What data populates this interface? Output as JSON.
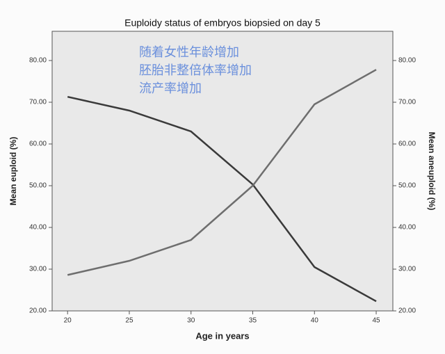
{
  "chart_data": {
    "type": "line",
    "title": "Euploidy status of embryos biopsied on day 5",
    "annotations": [
      "随着女性年龄增加",
      "胚胎非整倍体率增加",
      "流产率增加"
    ],
    "xlabel": "Age in years",
    "ylabel": "Mean euploid (%)",
    "y2label": "Mean aneuploid (%)",
    "x": [
      20,
      25,
      30,
      35,
      40,
      45
    ],
    "series": [
      {
        "color": "#3a3a3a",
        "values": [
          71.3,
          68,
          63,
          50.3,
          30.5,
          22.3
        ]
      },
      {
        "color": "#6e6e6e",
        "axis": "y2",
        "values": [
          28.6,
          32,
          37,
          50,
          69.5,
          77.8
        ]
      }
    ],
    "xlim": [
      18.75,
      46.35
    ],
    "xticks": [
      20,
      25,
      30,
      35,
      40,
      45
    ],
    "ylim": [
      20,
      87
    ],
    "yticks": [
      {
        "value": 20,
        "label": "20.00"
      },
      {
        "value": 30,
        "label": "30.00"
      },
      {
        "value": 40,
        "label": "40.00"
      },
      {
        "value": 50,
        "label": "50.00"
      },
      {
        "value": 60,
        "label": "60.00"
      },
      {
        "value": 70,
        "label": "70.00"
      },
      {
        "value": 80,
        "label": "80.00"
      }
    ],
    "y2lim": [
      20,
      87
    ],
    "y2ticks": [
      {
        "value": 20,
        "label": "20.00"
      },
      {
        "value": 30,
        "label": "30.00"
      },
      {
        "value": 40,
        "label": "40.00"
      },
      {
        "value": 50,
        "label": "50.00"
      },
      {
        "value": 60,
        "label": "60.00"
      },
      {
        "value": 70,
        "label": "70.00"
      },
      {
        "value": 80,
        "label": "80.00"
      }
    ]
  }
}
